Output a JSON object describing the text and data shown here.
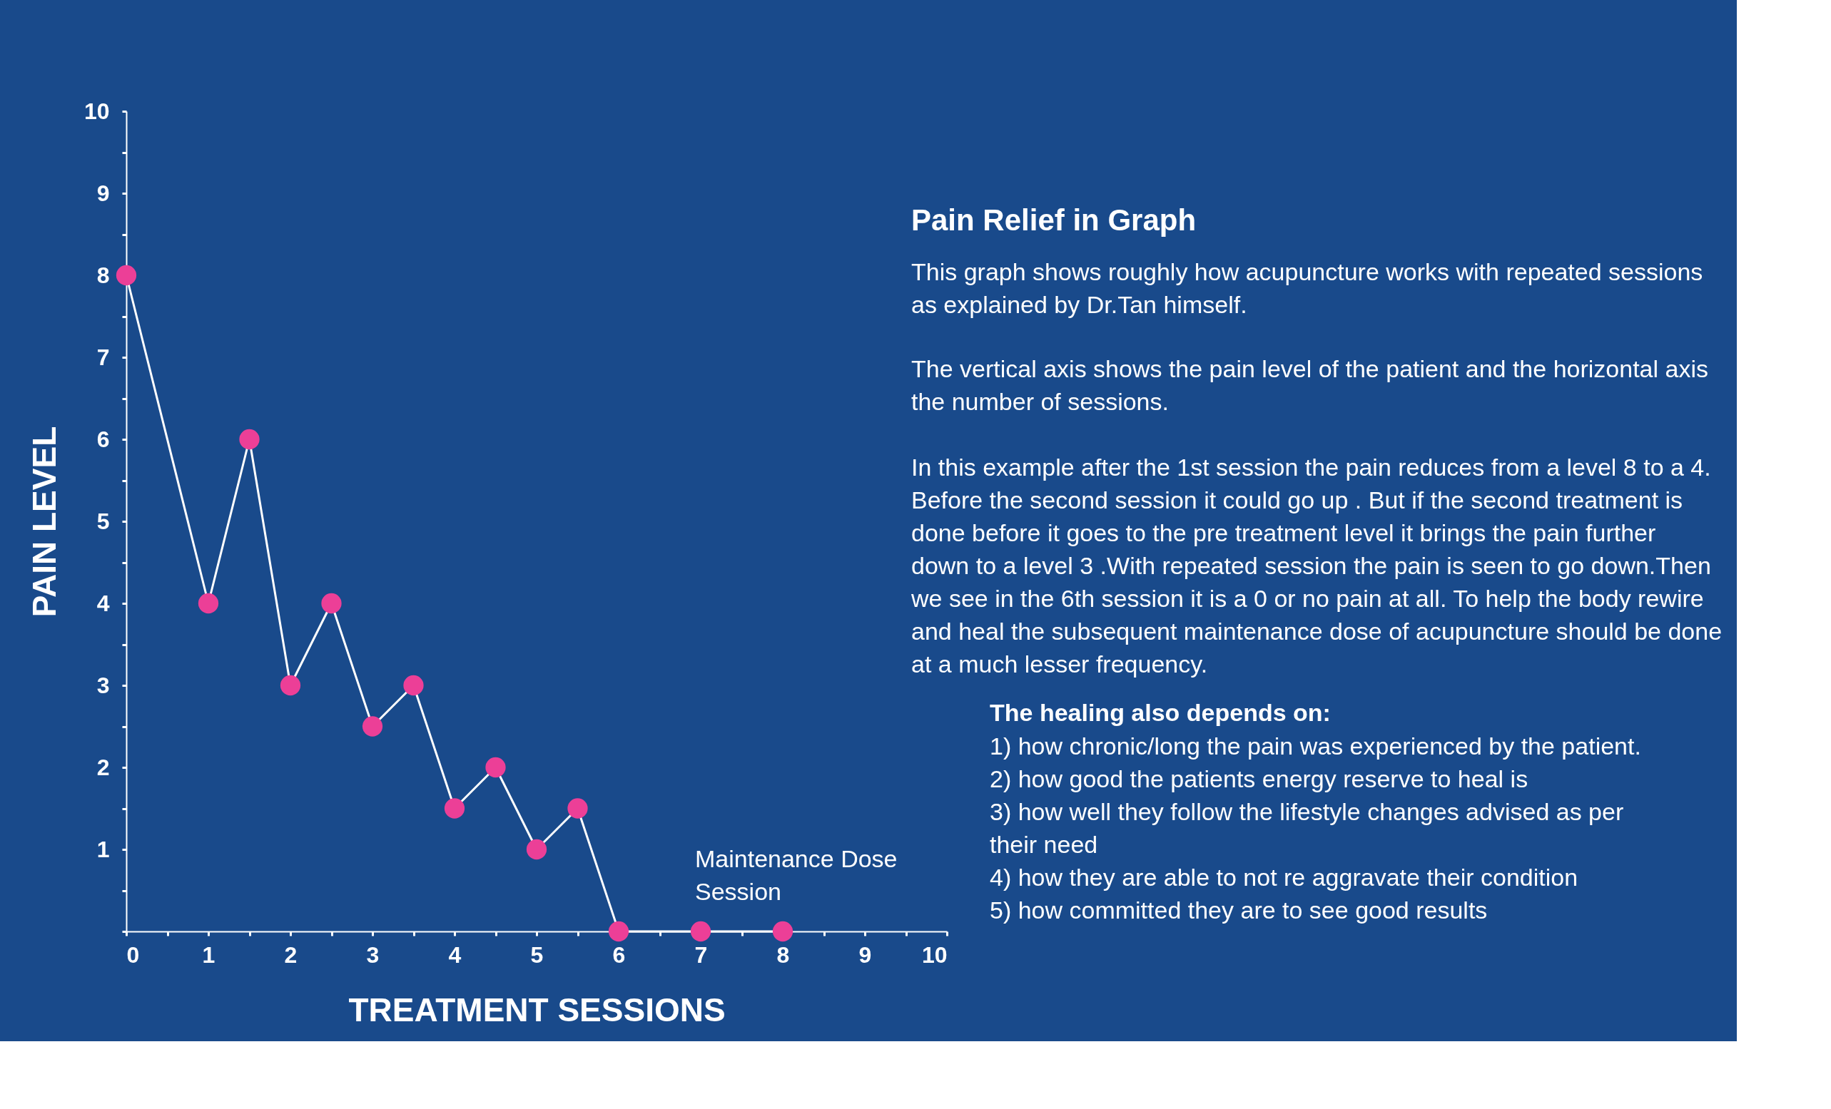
{
  "chart_data": {
    "type": "line",
    "title": "Pain Relief in Graph",
    "xlabel": "TREATMENT SESSIONS",
    "ylabel": "PAIN LEVEL",
    "x": [
      0,
      1,
      1.5,
      2,
      2.5,
      3,
      3.5,
      4,
      4.5,
      5,
      5.5,
      6,
      7,
      8
    ],
    "series": [
      {
        "color": "#ffffff",
        "values": [
          8,
          4,
          6,
          3,
          4,
          2.5,
          3,
          1.5,
          2,
          1,
          1.5,
          0,
          0,
          0
        ]
      }
    ],
    "marker": "circle",
    "line_style": "solid",
    "grid": false,
    "xlim": [
      0,
      10
    ],
    "ylim": [
      0,
      10
    ],
    "xticks": [
      0,
      {
        "value": 0.5,
        "label": null
      },
      1,
      {
        "value": 1.5,
        "label": null
      },
      2,
      {
        "value": 2.5,
        "label": null
      },
      3,
      {
        "value": 3.5,
        "label": null
      },
      4,
      {
        "value": 4.5,
        "label": null
      },
      5,
      {
        "value": 5.5,
        "label": null
      },
      6,
      {
        "value": 6.5,
        "label": null
      },
      7,
      {
        "value": 7.5,
        "label": null
      },
      8,
      {
        "value": 8.5,
        "label": null
      },
      9,
      {
        "value": 9.5,
        "label": null
      },
      10
    ],
    "yticks": [
      {
        "value": 0,
        "label": null
      },
      {
        "value": 0.5,
        "label": null
      },
      1,
      {
        "value": 1.5,
        "label": null
      },
      2,
      {
        "value": 2.5,
        "label": null
      },
      3,
      {
        "value": 3.5,
        "label": null
      },
      4,
      {
        "value": 4.5,
        "label": null
      },
      5,
      {
        "value": 5.5,
        "label": null
      },
      6,
      {
        "value": 6.5,
        "label": null
      },
      7,
      {
        "value": 7.5,
        "label": null
      },
      8,
      {
        "value": 8.5,
        "label": null
      },
      9,
      {
        "value": 9.5,
        "label": null
      },
      10
    ],
    "annotations": [
      "Maintenance Dose\nSession",
      " This graph shows roughly how  acupuncture works with repeated sessions\nas explained by Dr.Tan himself.",
      "The vertical axis shows the pain level of the patient and the  horizontal axis\nthe number of sessions.",
      "In this example  after the 1st session the pain reduces from a level 8 to a 4.\nBefore the second session it could go up . But if the second treatment is\ndone before it goes to the pre treatment level it brings the pain further\ndown to a  level 3 .With repeated session the pain is seen to go down.Then\nwe see in the 6th session it is a 0 or no pain at all. To help the body rewire\nand heal the subsequent maintenance dose of acupuncture should be done\nat a much lesser frequency.",
      "The healing also depends on:",
      "1) how chronic/long the pain was experienced by the patient.\n2) how good the patients energy reserve to heal is\n3) how well they follow the lifestyle changes advised as per\ntheir need\n4) how they are able to not re aggravate their condition\n5) how committed they are to see good results"
    ]
  }
}
